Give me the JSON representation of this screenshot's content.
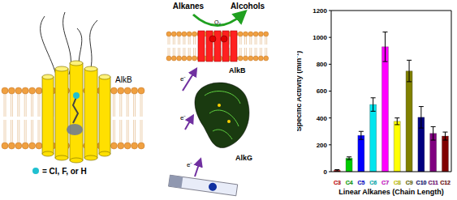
{
  "diagram": {
    "membrane_protein": {
      "label": "AlkB",
      "ligand_legend": "= Cl, F, or H"
    },
    "pathway": {
      "substrate": "Alkanes",
      "product": "Alcohols",
      "cosubstrate": "O₂",
      "enzyme": "AlkB",
      "electron_labels": [
        "e⁻",
        "e⁻",
        "e⁻"
      ],
      "electron_donor": "AlkG"
    }
  },
  "chart_data": {
    "type": "bar",
    "categories": [
      "C3",
      "C4",
      "C5",
      "C6",
      "C7",
      "C8",
      "C9",
      "C10",
      "C11",
      "C12"
    ],
    "values": [
      10,
      100,
      270,
      500,
      930,
      375,
      750,
      405,
      285,
      265
    ],
    "errors": [
      5,
      10,
      30,
      50,
      110,
      25,
      80,
      80,
      50,
      30
    ],
    "colors": [
      "#ff0000",
      "#00cc00",
      "#0000ff",
      "#00e5ee",
      "#ff00ff",
      "#ffff00",
      "#808000",
      "#000080",
      "#800080",
      "#800000"
    ],
    "ylim": [
      0,
      1200
    ],
    "yticks": [
      0,
      200,
      400,
      600,
      800,
      1000,
      1200
    ],
    "y_label": "Specific Activity (min⁻¹)",
    "x_label": "Linear Alkanes (Chain Length)",
    "grid": false
  }
}
